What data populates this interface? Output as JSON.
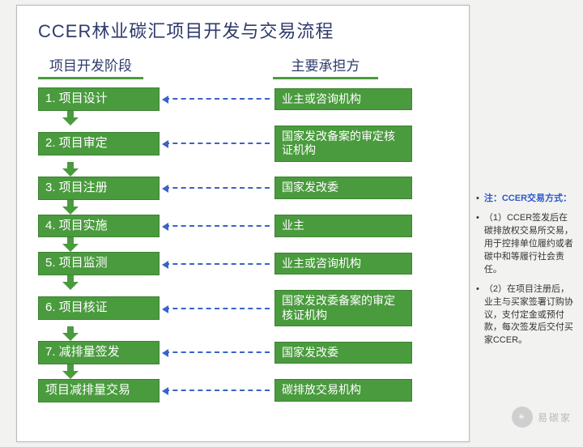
{
  "title": "CCER林业碳汇项目开发与交易流程",
  "left_header": "项目开发阶段",
  "right_header": "主要承担方",
  "colors": {
    "box_bg": "#4a9b3e",
    "box_border": "#3d8232",
    "box_text": "#ffffff",
    "title_text": "#2e3b6b",
    "arrow_green": "#4a9b3e",
    "arrow_dash": "#3a63c8",
    "slide_bg": "#ffffff",
    "page_bg": "#f2f2f0"
  },
  "rows": [
    {
      "left": "1. 项目设计",
      "right": "业主或咨询机构",
      "right_two": false
    },
    {
      "left": "2. 项目审定",
      "right": "国家发改备案的审定核证机构",
      "right_two": true
    },
    {
      "left": "3. 项目注册",
      "right": "国家发改委",
      "right_two": false
    },
    {
      "left": "4. 项目实施",
      "right": "业主",
      "right_two": false
    },
    {
      "left": "5. 项目监测",
      "right": "业主或咨询机构",
      "right_two": false
    },
    {
      "left": "6. 项目核证",
      "right": "国家发改委备案的审定核证机构",
      "right_two": true
    },
    {
      "left": "7. 减排量签发",
      "right": "国家发改委",
      "right_two": false
    },
    {
      "left": "项目减排量交易",
      "right": "碳排放交易机构",
      "right_two": false
    }
  ],
  "notes_title": "注：CCER交易方式：",
  "notes": [
    "（1）CCER签发后在碳排放权交易所交易，用于控排单位履约或者碳中和等履行社会责任。",
    "（2）在项目注册后，业主与买家签署订购协议，支付定金或预付款，每次签发后交付买家CCER。"
  ],
  "watermark": "易碳家"
}
